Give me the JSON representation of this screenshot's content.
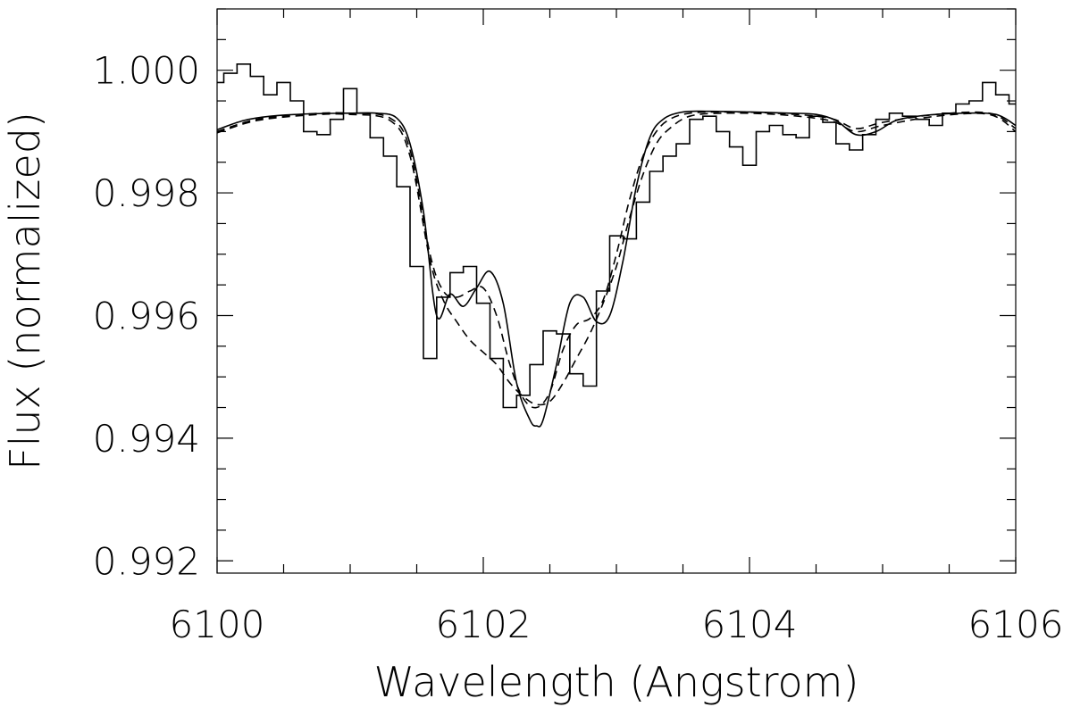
{
  "chart_data": {
    "type": "line",
    "title": "",
    "xlabel": "Wavelength (Angstrom)",
    "ylabel": "Flux (normalized)",
    "xlim": [
      6100,
      6106
    ],
    "ylim": [
      0.9918,
      1.001
    ],
    "x_ticks": [
      6100,
      6102,
      6104,
      6106
    ],
    "x_tick_labels": [
      "6100",
      "6102",
      "6104",
      "6106"
    ],
    "x_minor_step": 0.5,
    "y_ticks": [
      0.992,
      0.994,
      0.996,
      0.998,
      1.0
    ],
    "y_tick_labels": [
      "0.992",
      "0.994",
      "0.996",
      "0.998",
      "1.000"
    ],
    "y_minor_step": 0.0005,
    "grid": false,
    "legend": "none",
    "colors": {
      "line": "#000000",
      "background": "#ffffff"
    },
    "series": [
      {
        "style": "step",
        "x": [
          6100.0,
          6100.1,
          6100.2,
          6100.3,
          6100.4,
          6100.5,
          6100.6,
          6100.7,
          6100.8,
          6100.9,
          6101.0,
          6101.1,
          6101.2,
          6101.3,
          6101.4,
          6101.5,
          6101.6,
          6101.7,
          6101.8,
          6101.9,
          6102.0,
          6102.1,
          6102.2,
          6102.3,
          6102.4,
          6102.5,
          6102.6,
          6102.7,
          6102.8,
          6102.9,
          6103.0,
          6103.1,
          6103.2,
          6103.3,
          6103.4,
          6103.5,
          6103.6,
          6103.7,
          6103.8,
          6103.9,
          6104.0,
          6104.1,
          6104.2,
          6104.3,
          6104.4,
          6104.5,
          6104.6,
          6104.7,
          6104.8,
          6104.9,
          6105.0,
          6105.1,
          6105.2,
          6105.3,
          6105.4,
          6105.5,
          6105.6,
          6105.7,
          6105.8,
          6105.9,
          6106.0
        ],
        "y": [
          0.9998,
          0.99995,
          1.0001,
          0.9999,
          0.9996,
          0.9998,
          0.9995,
          0.999,
          0.99895,
          0.9992,
          0.9997,
          0.9993,
          0.9989,
          0.9986,
          0.9981,
          0.9968,
          0.9953,
          0.9963,
          0.9967,
          0.9968,
          0.9962,
          0.9953,
          0.9945,
          0.9947,
          0.9952,
          0.99575,
          0.9957,
          0.99505,
          0.99485,
          0.9964,
          0.9973,
          0.99725,
          0.99785,
          0.99835,
          0.9986,
          0.9988,
          0.9992,
          0.99925,
          0.999,
          0.99875,
          0.99845,
          0.999,
          0.9991,
          0.99895,
          0.9989,
          0.99925,
          0.99915,
          0.9988,
          0.9987,
          0.99895,
          0.9992,
          0.9993,
          0.99925,
          0.9992,
          0.9991,
          0.9993,
          0.99945,
          0.9995,
          0.9998,
          0.9996,
          0.99945
        ]
      },
      {
        "style": "solid",
        "x": [
          6100.0,
          6100.2,
          6100.4,
          6100.7,
          6101.0,
          6101.2,
          6101.35,
          6101.45,
          6101.55,
          6101.65,
          6101.75,
          6101.85,
          6101.95,
          6102.05,
          6102.15,
          6102.25,
          6102.35,
          6102.4,
          6102.45,
          6102.55,
          6102.65,
          6102.75,
          6102.85,
          6102.95,
          6103.05,
          6103.15,
          6103.25,
          6103.35,
          6103.5,
          6103.7,
          6104.0,
          6104.3,
          6104.5,
          6104.65,
          6104.8,
          6104.95,
          6105.1,
          6105.3,
          6105.6,
          6105.85,
          6106.0
        ],
        "y": [
          0.99903,
          0.99918,
          0.99925,
          0.99929,
          0.9993,
          0.9993,
          0.99922,
          0.9988,
          0.9977,
          0.996,
          0.99635,
          0.99615,
          0.99645,
          0.99672,
          0.9962,
          0.9949,
          0.9943,
          0.9942,
          0.9943,
          0.9952,
          0.9962,
          0.9963,
          0.9959,
          0.996,
          0.9969,
          0.9981,
          0.9989,
          0.9992,
          0.99932,
          0.99933,
          0.99932,
          0.9993,
          0.99928,
          0.99918,
          0.99895,
          0.999,
          0.99918,
          0.99926,
          0.9993,
          0.99928,
          0.9991
        ]
      },
      {
        "style": "dashed",
        "x": [
          6100.0,
          6100.3,
          6100.7,
          6101.0,
          6101.3,
          6101.45,
          6101.6,
          6101.7,
          6101.8,
          6101.9,
          6102.0,
          6102.1,
          6102.2,
          6102.3,
          6102.4,
          6102.5,
          6102.6,
          6102.7,
          6102.8,
          6102.9,
          6103.0,
          6103.1,
          6103.2,
          6103.3,
          6103.4,
          6103.55,
          6103.8,
          6104.2,
          6104.6,
          6104.8,
          6105.0,
          6105.4,
          6105.8,
          6106.0
        ],
        "y": [
          0.999,
          0.9992,
          0.99929,
          0.9993,
          0.99922,
          0.9987,
          0.997,
          0.9964,
          0.9963,
          0.9964,
          0.99645,
          0.996,
          0.9952,
          0.99465,
          0.9945,
          0.99475,
          0.99545,
          0.99585,
          0.99595,
          0.99625,
          0.997,
          0.9979,
          0.9986,
          0.999,
          0.9992,
          0.9993,
          0.99932,
          0.9993,
          0.99922,
          0.99905,
          0.99915,
          0.99928,
          0.9993,
          0.99905
        ]
      },
      {
        "style": "dashed",
        "x": [
          6100.0,
          6100.3,
          6100.7,
          6101.0,
          6101.3,
          6101.45,
          6101.6,
          6101.7,
          6101.8,
          6101.9,
          6102.0,
          6102.1,
          6102.2,
          6102.3,
          6102.4,
          6102.5,
          6102.6,
          6102.7,
          6102.8,
          6102.9,
          6103.0,
          6103.1,
          6103.2,
          6103.3,
          6103.4,
          6103.55,
          6103.8,
          6104.2,
          6104.6,
          6104.8,
          6105.0,
          6105.4,
          6105.8,
          6106.0
        ],
        "y": [
          0.99898,
          0.99918,
          0.99927,
          0.99928,
          0.99918,
          0.9986,
          0.9969,
          0.99625,
          0.9959,
          0.9956,
          0.9954,
          0.9952,
          0.9949,
          0.99468,
          0.99455,
          0.9946,
          0.9949,
          0.9953,
          0.9957,
          0.9962,
          0.9968,
          0.9976,
          0.9983,
          0.9988,
          0.99905,
          0.99925,
          0.9993,
          0.99928,
          0.99918,
          0.999,
          0.9991,
          0.99925,
          0.99928,
          0.999
        ]
      }
    ]
  }
}
